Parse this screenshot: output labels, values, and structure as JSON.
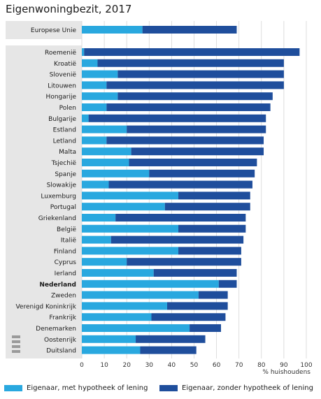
{
  "title": "Eigenwoningbezit, 2017",
  "chart_data": {
    "type": "bar",
    "orientation": "horizontal",
    "stacked": true,
    "xlabel": "% huishoudens",
    "xlim": [
      0,
      100
    ],
    "xticks": [
      0,
      10,
      20,
      30,
      40,
      50,
      60,
      70,
      80,
      90,
      100
    ],
    "grid": true,
    "legend_position": "bottom",
    "categories": [
      "Europese Unie",
      "Roemenië",
      "Kroatië",
      "Slovenië",
      "Litouwen",
      "Hongarije",
      "Polen",
      "Bulgarije",
      "Estland",
      "Letland",
      "Malta",
      "Tsjechië",
      "Spanje",
      "Slowakije",
      "Luxemburg",
      "Portugal",
      "Griekenland",
      "België",
      "Italië",
      "Finland",
      "Cyprus",
      "Ierland",
      "Nederland",
      "Zweden",
      "Verenigd Koninkrijk",
      "Frankrijk",
      "Denemarken",
      "Oostenrijk",
      "Duitsland"
    ],
    "highlight": "Nederland",
    "series": [
      {
        "name": "Eigenaar, met hypotheek of lening",
        "color": "#29a8df",
        "values": [
          27,
          1,
          7,
          16,
          11,
          16,
          11,
          3,
          20,
          11,
          22,
          21,
          30,
          12,
          43,
          37,
          15,
          43,
          13,
          43,
          20,
          32,
          61,
          52,
          38,
          31,
          48,
          24,
          26
        ]
      },
      {
        "name": "Eigenaar, zonder hypotheek of lening",
        "color": "#1f4e9c",
        "values": [
          42,
          96,
          83,
          74,
          79,
          69,
          73,
          79,
          62,
          70,
          59,
          57,
          47,
          64,
          32,
          38,
          58,
          30,
          59,
          28,
          51,
          37,
          8,
          13,
          27,
          33,
          14,
          31,
          25
        ]
      }
    ]
  }
}
